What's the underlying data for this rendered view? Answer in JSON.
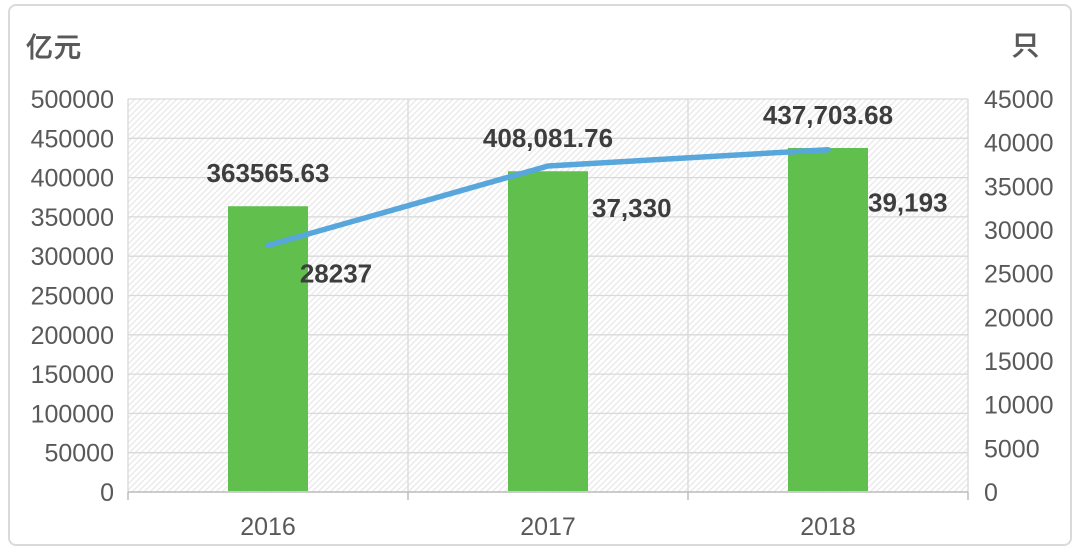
{
  "chart_data": {
    "type": "combo",
    "title": "",
    "categories": [
      "2016",
      "2017",
      "2018"
    ],
    "series": [
      {
        "type": "bar",
        "axis": "left",
        "color": "#61bf4d",
        "values": [
          363565.63,
          408081.76,
          437703.68
        ],
        "labels": [
          "363565.63",
          "408,081.76",
          "437,703.68"
        ]
      },
      {
        "type": "line",
        "axis": "right",
        "color": "#58a7dc",
        "values": [
          28237,
          37330,
          39193
        ],
        "labels": [
          "28237",
          "37,330",
          "39,193"
        ]
      }
    ],
    "left_axis": {
      "title": "亿元",
      "min": 0,
      "max": 500000,
      "step": 50000,
      "tick_labels": [
        "500000",
        "450000",
        "400000",
        "350000",
        "300000",
        "250000",
        "200000",
        "150000",
        "100000",
        "50000",
        "0"
      ]
    },
    "right_axis": {
      "title": "只",
      "min": 0,
      "max": 45000,
      "step": 5000,
      "tick_labels": [
        "45000",
        "40000",
        "35000",
        "30000",
        "25000",
        "20000",
        "15000",
        "10000",
        "5000",
        "0"
      ]
    },
    "grid": true,
    "legend": "none",
    "plot_background": "diagonal-hatch",
    "colors": {
      "bar": "#61bf4d",
      "line": "#58a7dc",
      "gridline": "#d9d9d9",
      "hatch": "#ebebeb",
      "tick_text": "#595959",
      "data_label_text": "#3d3d3d",
      "axis_line": "#bdbdbd",
      "card_border": "#dadada"
    }
  }
}
